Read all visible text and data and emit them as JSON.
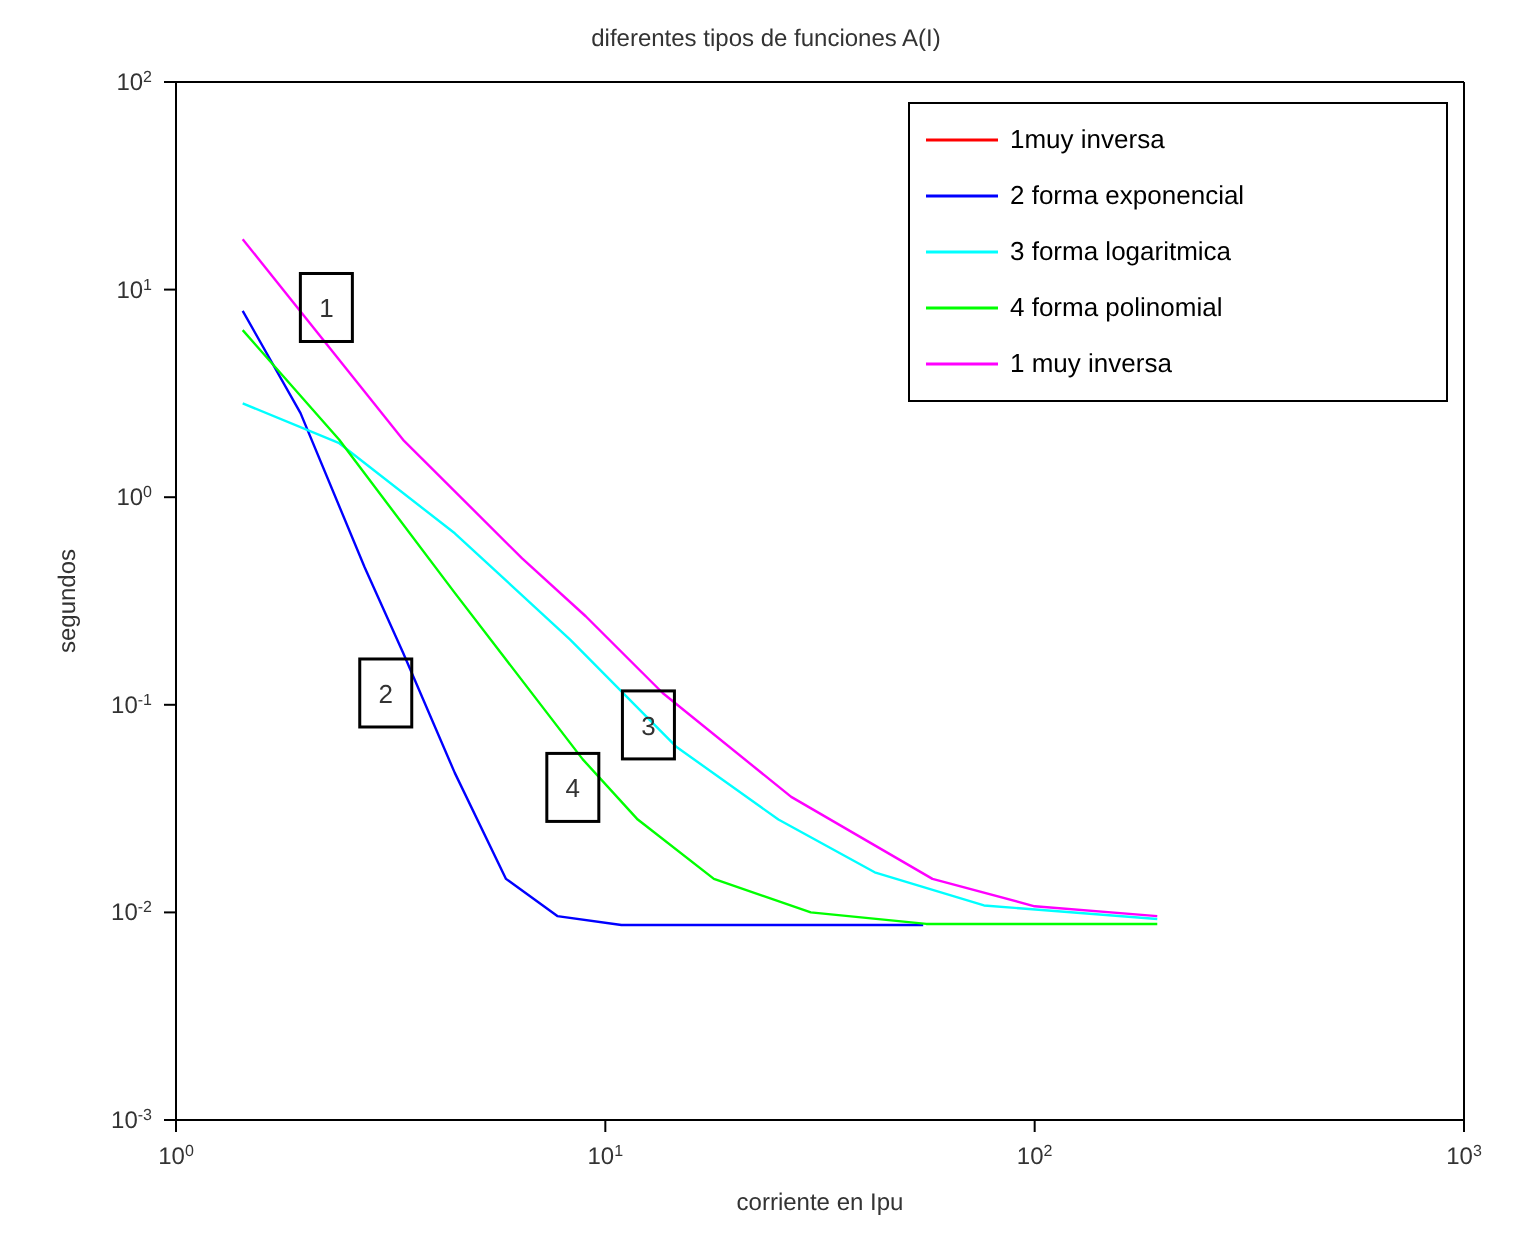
{
  "chart_data": {
    "type": "line",
    "title": "diferentes tipos de funciones A(I)",
    "xlabel": "corriente en Ipu",
    "ylabel": "segundos",
    "log": "xy",
    "grid": false,
    "legend": "top right",
    "xlim": [
      1,
      1000
    ],
    "xticks": [
      {
        "value": 1,
        "label": "10$^{0}$"
      },
      {
        "value": 10,
        "label": "10$^{1}$"
      },
      {
        "value": 100,
        "label": "10$^{2}$"
      },
      {
        "value": 1000,
        "label": "10$^{3}$"
      }
    ],
    "ylim": [
      0.001,
      100
    ],
    "yticks": [
      {
        "value": 0.001,
        "label": "10$^{-3}$"
      },
      {
        "value": 0.01,
        "label": "10$^{-2}$"
      },
      {
        "value": 0.1,
        "label": "10$^{-1}$"
      },
      {
        "value": 1,
        "label": "10$^{0}$"
      },
      {
        "value": 10,
        "label": "10$^{1}$"
      },
      {
        "value": 100,
        "label": "10$^{2}$"
      }
    ],
    "series": [
      {
        "name": "1muy inversa",
        "color": "#ff0000"
      },
      {
        "name": "2 forma exponencial",
        "color": "#0000ff",
        "x": [
          1.43,
          1.95,
          2.75,
          3.38,
          4.46,
          5.87,
          7.73,
          10.9,
          55
        ],
        "values": [
          7.9,
          2.54,
          0.46,
          0.178,
          0.047,
          0.0145,
          0.0096,
          0.0087,
          0.0087
        ]
      },
      {
        "name": "3 forma logaritmica",
        "color": "#00ffff",
        "x": [
          1.43,
          2.4,
          4.46,
          8.28,
          14.6,
          25.3,
          42.4,
          76.2,
          193
        ],
        "values": [
          2.83,
          1.82,
          0.67,
          0.206,
          0.063,
          0.028,
          0.0156,
          0.0108,
          0.0093
        ]
      },
      {
        "name": "4 forma polinomial",
        "color": "#00ff00",
        "x": [
          1.43,
          2.4,
          4.46,
          8.86,
          11.9,
          17.9,
          30.1,
          55.9,
          193
        ],
        "values": [
          6.38,
          1.89,
          0.346,
          0.0546,
          0.028,
          0.0145,
          0.01,
          0.0088,
          0.0088
        ]
      },
      {
        "name": "1 muy inversa",
        "color": "#ff00ff",
        "x": [
          1.43,
          3.38,
          6.4,
          9.0,
          13.6,
          27.1,
          57.8,
          100,
          193
        ],
        "values": [
          17.5,
          1.89,
          0.507,
          0.267,
          0.114,
          0.036,
          0.0145,
          0.0107,
          0.0096
        ]
      }
    ],
    "annotations": [
      {
        "text": "1",
        "x": 2.24,
        "y": 8.2
      },
      {
        "text": "2",
        "x": 3.08,
        "y": 0.114
      },
      {
        "text": "3",
        "x": 12.6,
        "y": 0.08
      },
      {
        "text": "4",
        "x": 8.4,
        "y": 0.04
      }
    ]
  }
}
